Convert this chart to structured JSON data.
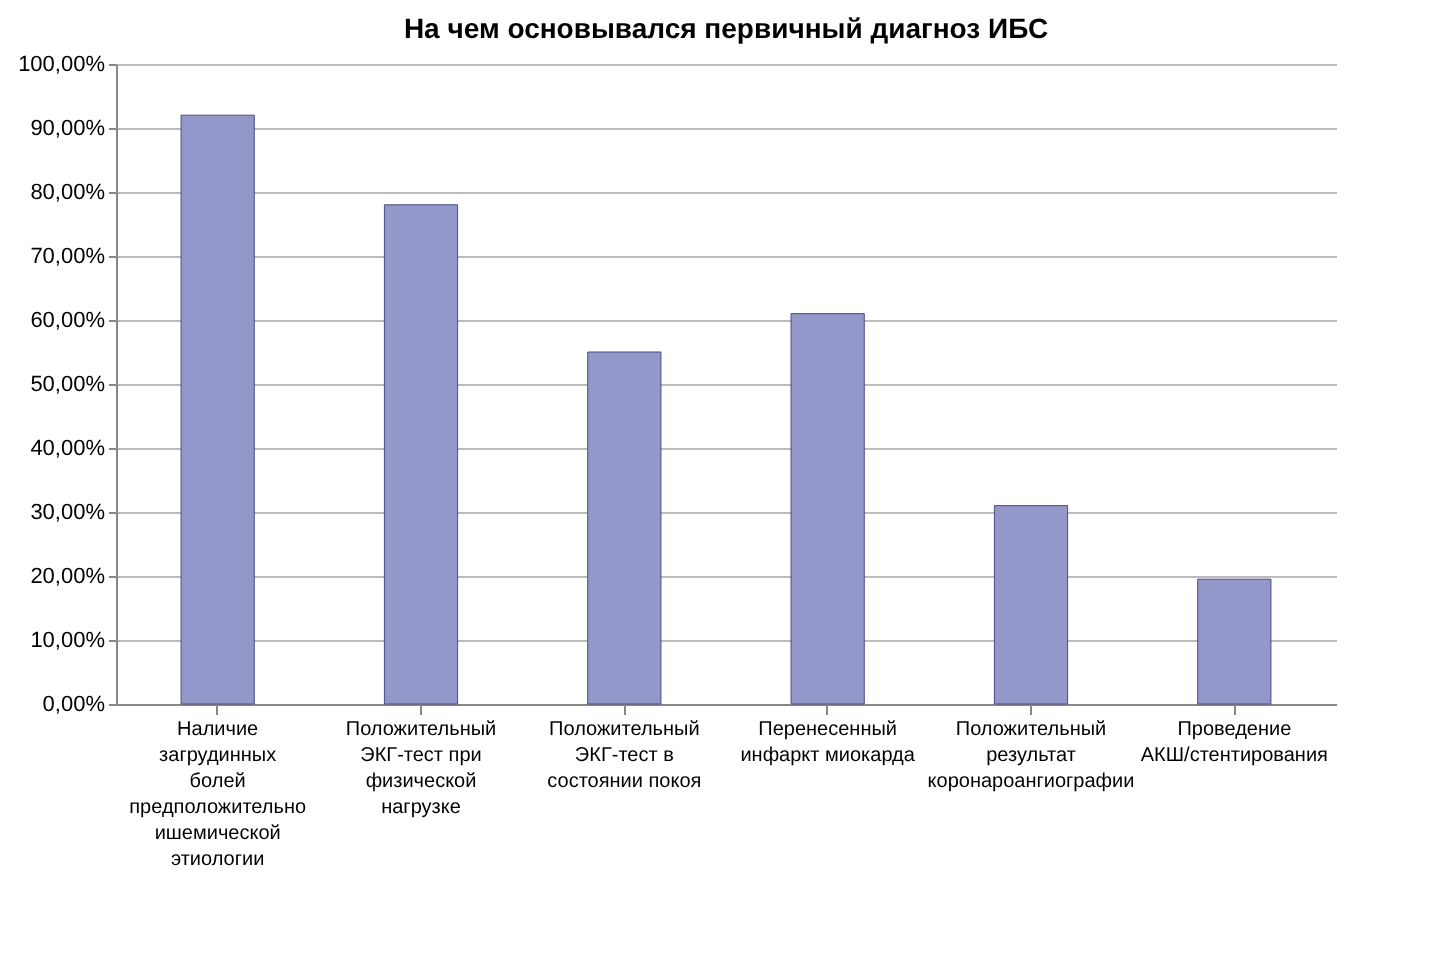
{
  "chart_data": {
    "type": "bar",
    "title": "На чем основывался первичный диагноз ИБС",
    "categories": [
      "Наличие загрудинных болей предположительно ишемической этиологии",
      "Положительный ЭКГ-тест при физической нагрузке",
      "Положительный ЭКГ-тест в состоянии покоя",
      "Перенесенный инфаркт миокарда",
      "Положительный результат коронароангиографии",
      "Проведение АКШ/стентирования"
    ],
    "values": [
      92,
      78,
      55,
      61,
      31,
      19.5
    ],
    "color": "#9497c9",
    "ylim": [
      0,
      100
    ],
    "yticks": [
      {
        "value": 0,
        "label": "0,00%"
      },
      {
        "value": 10,
        "label": "10,00%"
      },
      {
        "value": 20,
        "label": "20,00%"
      },
      {
        "value": 30,
        "label": "30,00%"
      },
      {
        "value": 40,
        "label": "40,00%"
      },
      {
        "value": 50,
        "label": "50,00%"
      },
      {
        "value": 60,
        "label": "60,00%"
      },
      {
        "value": 70,
        "label": "70,00%"
      },
      {
        "value": 80,
        "label": "80,00%"
      },
      {
        "value": 90,
        "label": "90,00%"
      },
      {
        "value": 100,
        "label": "100,00%"
      }
    ],
    "grid": true
  }
}
